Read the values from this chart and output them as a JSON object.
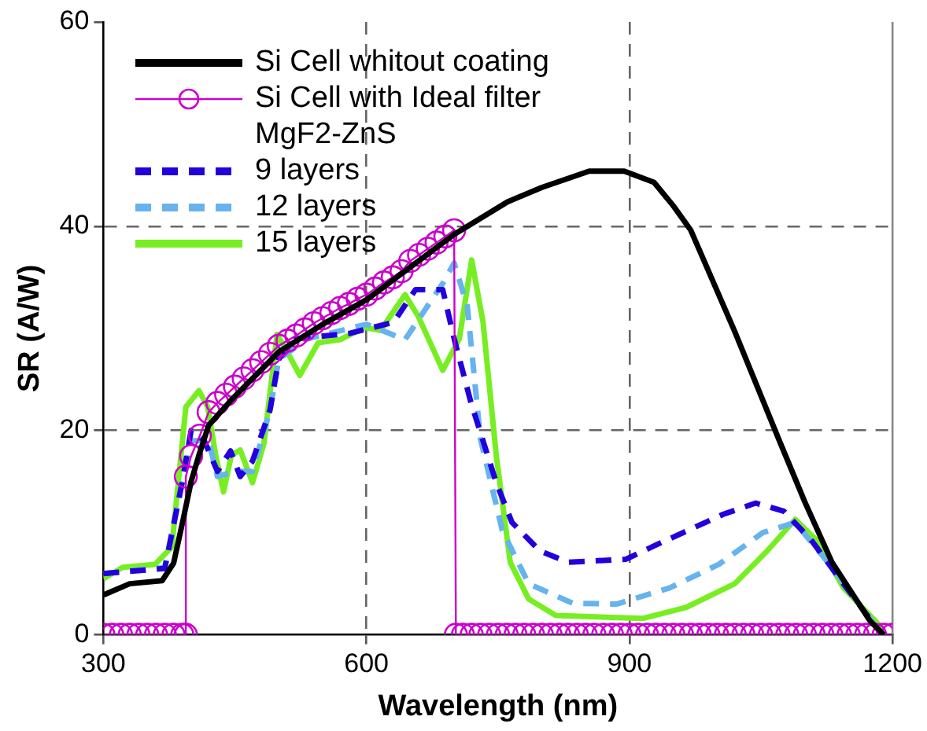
{
  "chart_data": {
    "type": "line",
    "xlabel": "Wavelength (nm)",
    "ylabel": "SR (A/W)",
    "legend_title": "MgF2-ZnS",
    "xlim": [
      300,
      1200
    ],
    "ylim": [
      0,
      60
    ],
    "xticks": [
      300,
      600,
      900,
      1200
    ],
    "yticks": [
      0,
      20,
      40,
      60
    ],
    "grid": true,
    "legend": "top left",
    "series": [
      {
        "name": "Si Cell whitout coating",
        "color": "#000000",
        "marker": "none",
        "line_style": "solid",
        "x": [
          300,
          330,
          367,
          380,
          391,
          400,
          409,
          420,
          446,
          500,
          550,
          600,
          650,
          700,
          761,
          800,
          854,
          894,
          928,
          950,
          970,
          1020,
          1070,
          1100,
          1131,
          1174,
          1190
        ],
        "values": [
          3.9,
          5,
          5.3,
          7,
          11.3,
          15,
          17.6,
          20.5,
          23,
          27.7,
          30.4,
          32.8,
          36,
          39.2,
          42.4,
          43.8,
          45.4,
          45.4,
          44.3,
          42,
          39.6,
          29.7,
          19.2,
          13,
          7.1,
          1.4,
          0
        ]
      },
      {
        "name": "Si Cell with Ideal filter",
        "color": "#cc00cc",
        "marker": "circle",
        "line_style": "solid",
        "x": [
          300,
          310,
          320,
          330,
          340,
          350,
          360,
          370,
          380,
          390,
          394,
          394,
          400,
          410,
          420,
          430,
          440,
          450,
          460,
          470,
          480,
          490,
          500,
          510,
          520,
          530,
          540,
          550,
          560,
          570,
          580,
          590,
          600,
          610,
          620,
          630,
          640,
          650,
          660,
          670,
          680,
          690,
          700,
          702,
          710,
          720,
          730,
          740,
          750,
          760,
          770,
          780,
          790,
          800,
          810,
          820,
          830,
          840,
          850,
          860,
          870,
          880,
          890,
          900,
          910,
          920,
          930,
          940,
          950,
          960,
          970,
          980,
          990,
          1000,
          1010,
          1020,
          1030,
          1040,
          1050,
          1060,
          1070,
          1080,
          1090,
          1100,
          1110,
          1120,
          1130,
          1140,
          1150,
          1160,
          1170,
          1180,
          1190,
          1200
        ],
        "values": [
          0,
          0,
          0,
          0,
          0,
          0,
          0,
          0,
          0,
          0,
          0,
          15.5,
          17.5,
          19.5,
          21.8,
          22.7,
          23.5,
          24.3,
          25.1,
          25.9,
          26.7,
          27.5,
          28.3,
          28.8,
          29.3,
          29.9,
          30.5,
          31,
          31.5,
          32,
          32.4,
          32.9,
          33.3,
          33.9,
          34.5,
          35,
          35.6,
          36.6,
          37.2,
          37.8,
          38.4,
          39,
          39.6,
          0,
          0,
          0,
          0,
          0,
          0,
          0,
          0,
          0,
          0,
          0,
          0,
          0,
          0,
          0,
          0,
          0,
          0,
          0,
          0,
          0,
          0,
          0,
          0,
          0,
          0,
          0,
          0,
          0,
          0,
          0,
          0,
          0,
          0,
          0,
          0,
          0,
          0,
          0,
          0,
          0,
          0,
          0,
          0,
          0,
          0,
          0,
          0,
          0,
          0,
          0
        ]
      },
      {
        "name": "9 layers",
        "color": "#2200dd",
        "marker": "none",
        "line_style": "dashed",
        "x": [
          300,
          370,
          390,
          400,
          415,
          430,
          445,
          456,
          470,
          490,
          500,
          520,
          580,
          631,
          656,
          687,
          700,
          719,
          748,
          766,
          798,
          830,
          896,
          933,
          1007,
          1044,
          1076,
          1107,
          1144,
          1181
        ],
        "values": [
          6,
          6.5,
          15,
          20,
          19,
          16,
          18,
          15.5,
          17,
          22,
          27,
          29,
          29.5,
          30.6,
          33.8,
          33.8,
          29,
          22.8,
          14.9,
          11,
          8.2,
          7.1,
          7.4,
          8.9,
          11.8,
          12.9,
          12.1,
          9.3,
          5,
          0.8
        ]
      },
      {
        "name": "12 layers",
        "color": "#66b3ee",
        "marker": "none",
        "line_style": "dashed",
        "x": [
          300,
          370,
          390,
          400,
          420,
          430,
          450,
          470,
          490,
          500,
          533,
          600,
          644,
          687,
          700,
          715,
          730,
          755,
          785,
          835,
          885,
          946,
          1002,
          1052,
          1089,
          1131,
          1181
        ],
        "values": [
          6,
          6.6,
          15,
          19,
          19,
          15.5,
          16,
          16,
          22,
          27,
          29,
          30.4,
          28.9,
          34.4,
          36.4,
          32.2,
          19.2,
          10.2,
          5,
          3.1,
          3,
          4.6,
          6.9,
          10,
          11,
          6.6,
          0.8
        ]
      },
      {
        "name": "15 layers",
        "color": "#77ee22",
        "marker": "none",
        "line_style": "solid",
        "x": [
          300,
          322,
          359,
          378,
          394,
          409,
          419,
          428,
          437,
          446,
          456,
          470,
          483,
          498,
          511,
          524,
          545,
          570,
          598,
          616,
          644,
          659,
          687,
          706,
          720,
          733,
          748,
          764,
          785,
          816,
          915,
          965,
          1020,
          1057,
          1089,
          1113,
          1144,
          1190
        ],
        "values": [
          5.5,
          6.6,
          6.9,
          8.6,
          22.3,
          23.9,
          22.3,
          17.6,
          14,
          17.6,
          18.1,
          14.9,
          18.7,
          29.4,
          27.5,
          25.4,
          28.6,
          28.9,
          30.1,
          29.8,
          33.3,
          31.2,
          25.9,
          29,
          36.7,
          30.6,
          17.6,
          7.1,
          3.5,
          1.9,
          1.6,
          2.7,
          5,
          8.2,
          11.3,
          9.3,
          4.6,
          0.5
        ]
      }
    ]
  }
}
